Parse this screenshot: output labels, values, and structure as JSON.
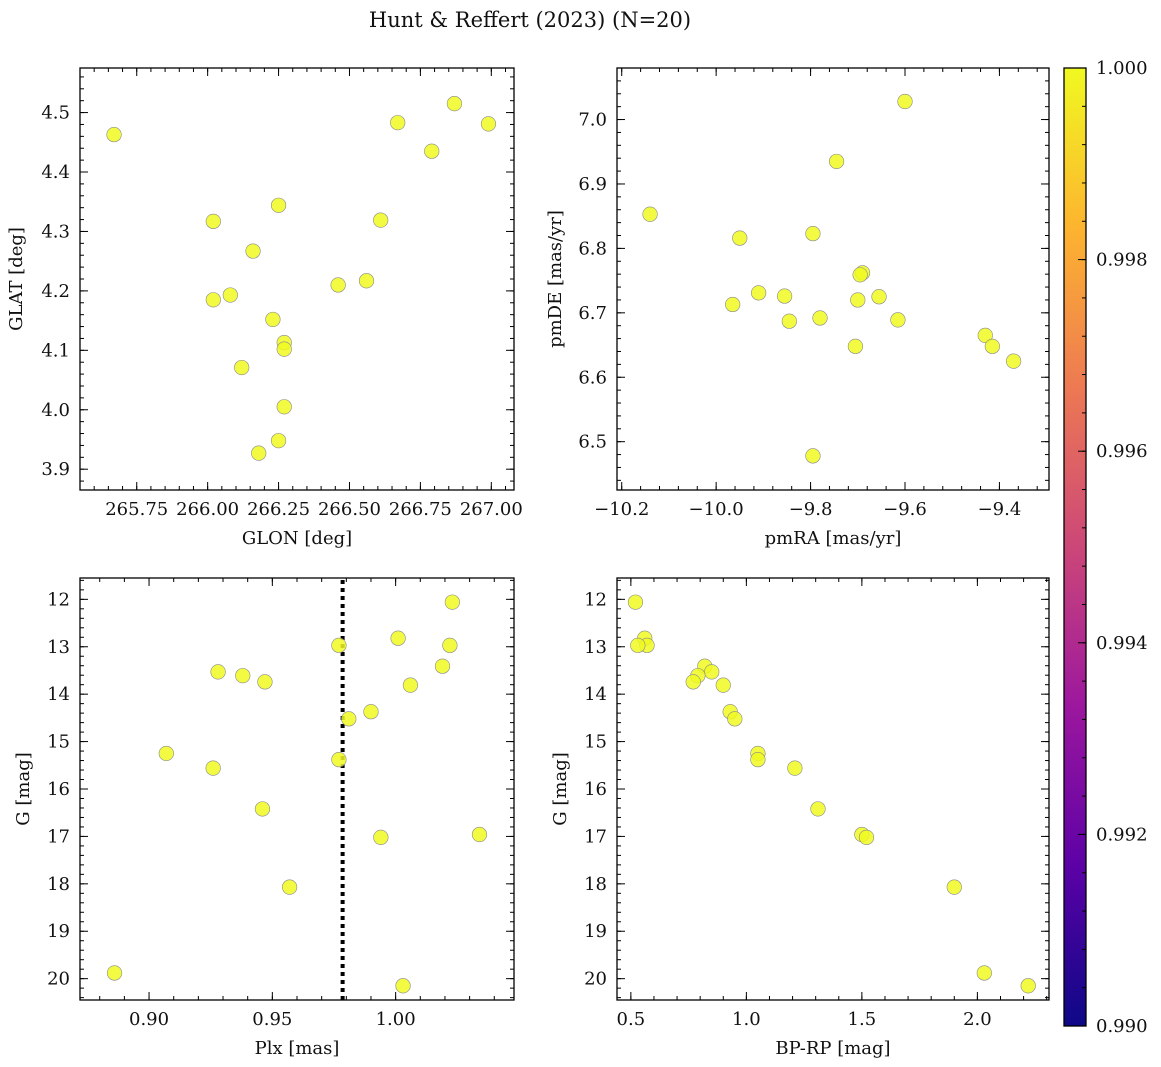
{
  "chart_data": {
    "type": "scatter",
    "title": "Hunt & Reffert (2023) (N=20)",
    "point_color": "#f0f921",
    "colorbar": {
      "range": [
        0.99,
        1.0
      ],
      "ticks": [
        0.99,
        0.992,
        0.994,
        0.996,
        0.998,
        1.0
      ],
      "tick_labels": [
        "0.990",
        "0.992",
        "0.994",
        "0.996",
        "0.998",
        "1.000"
      ],
      "colormap": "plasma",
      "stops": [
        "#0d0887",
        "#5c01a6",
        "#9c179e",
        "#cc4778",
        "#ed7953",
        "#fdb42f",
        "#f0f921"
      ]
    },
    "panels": [
      {
        "id": "glon-glat",
        "xlabel": "GLON [deg]",
        "ylabel": "GLAT [deg]",
        "xlim": [
          265.55,
          267.08
        ],
        "ylim": [
          3.865,
          4.575
        ],
        "invert_y": false,
        "xticks": [
          265.75,
          266.0,
          266.25,
          266.5,
          266.75,
          267.0
        ],
        "xtick_labels": [
          "265.75",
          "266.00",
          "266.25",
          "266.50",
          "266.75",
          "267.00"
        ],
        "yticks": [
          3.9,
          4.0,
          4.1,
          4.2,
          4.3,
          4.4,
          4.5
        ],
        "ytick_labels": [
          "3.9",
          "4.0",
          "4.1",
          "4.2",
          "4.3",
          "4.4",
          "4.5"
        ],
        "x_minor_step": 0.05,
        "y_minor_step": 0.02,
        "x": [
          265.67,
          266.67,
          266.99,
          266.87,
          266.79,
          266.25,
          266.02,
          266.61,
          266.16,
          266.46,
          266.56,
          266.08,
          266.02,
          266.23,
          266.27,
          266.27,
          266.12,
          266.27,
          266.25,
          266.18
        ],
        "y": [
          4.463,
          4.483,
          4.481,
          4.515,
          4.435,
          4.344,
          4.317,
          4.319,
          4.267,
          4.21,
          4.217,
          4.193,
          4.185,
          4.152,
          4.113,
          4.102,
          4.071,
          4.005,
          3.948,
          3.927
        ]
      },
      {
        "id": "pm",
        "xlabel": "pmRA [mas/yr]",
        "ylabel": "pmDE [mas/yr]",
        "xlim": [
          -10.21,
          -9.295
        ],
        "ylim": [
          6.425,
          7.08
        ],
        "invert_y": false,
        "xticks": [
          -10.2,
          -10.0,
          -9.8,
          -9.6,
          -9.4
        ],
        "xtick_labels": [
          "−10.2",
          "−10.0",
          "−9.8",
          "−9.6",
          "−9.4"
        ],
        "yticks": [
          6.5,
          6.6,
          6.7,
          6.8,
          6.9,
          7.0
        ],
        "ytick_labels": [
          "6.5",
          "6.6",
          "6.7",
          "6.8",
          "6.9",
          "7.0"
        ],
        "x_minor_step": 0.04,
        "y_minor_step": 0.02,
        "x": [
          -9.6,
          -10.14,
          -9.745,
          -9.95,
          -9.795,
          -9.91,
          -9.965,
          -9.855,
          -9.845,
          -9.78,
          -9.7,
          -9.69,
          -9.695,
          -9.655,
          -9.615,
          -9.705,
          -9.43,
          -9.415,
          -9.37,
          -9.795
        ],
        "y": [
          7.028,
          6.853,
          6.935,
          6.816,
          6.823,
          6.731,
          6.713,
          6.726,
          6.687,
          6.692,
          6.72,
          6.762,
          6.759,
          6.725,
          6.689,
          6.648,
          6.665,
          6.648,
          6.625,
          6.478
        ]
      },
      {
        "id": "plx-g",
        "xlabel": "Plx [mas]",
        "ylabel": "G [mag]",
        "xlim": [
          0.872,
          1.048
        ],
        "ylim": [
          20.45,
          11.55
        ],
        "invert_y": true,
        "xticks": [
          0.9,
          0.95,
          1.0
        ],
        "xtick_labels": [
          "0.90",
          "0.95",
          "1.00"
        ],
        "yticks": [
          12,
          13,
          14,
          15,
          16,
          17,
          18,
          19,
          20
        ],
        "ytick_labels": [
          "12",
          "13",
          "14",
          "15",
          "16",
          "17",
          "18",
          "19",
          "20"
        ],
        "x_minor_step": 0.01,
        "y_minor_step": 0.2,
        "vline": 0.9785,
        "x": [
          1.023,
          1.001,
          1.022,
          0.977,
          1.019,
          0.928,
          0.938,
          0.947,
          1.006,
          0.99,
          0.981,
          0.907,
          0.977,
          0.926,
          0.946,
          0.994,
          1.034,
          0.957,
          0.886,
          1.003
        ],
        "y": [
          12.06,
          12.82,
          12.97,
          12.97,
          13.41,
          13.53,
          13.61,
          13.74,
          13.81,
          14.37,
          14.52,
          15.25,
          15.38,
          15.56,
          16.42,
          17.02,
          16.96,
          18.07,
          19.88,
          20.15
        ]
      },
      {
        "id": "cmd",
        "xlabel": "BP-RP [mag]",
        "ylabel": "G [mag]",
        "xlim": [
          0.44,
          2.31
        ],
        "ylim": [
          20.45,
          11.55
        ],
        "invert_y": true,
        "xticks": [
          0.5,
          1.0,
          1.5,
          2.0
        ],
        "xtick_labels": [
          "0.5",
          "1.0",
          "1.5",
          "2.0"
        ],
        "yticks": [
          12,
          13,
          14,
          15,
          16,
          17,
          18,
          19,
          20
        ],
        "ytick_labels": [
          "12",
          "13",
          "14",
          "15",
          "16",
          "17",
          "18",
          "19",
          "20"
        ],
        "x_minor_step": 0.1,
        "y_minor_step": 0.2,
        "x": [
          0.52,
          0.56,
          0.57,
          0.53,
          0.82,
          0.85,
          0.79,
          0.77,
          0.9,
          0.93,
          0.95,
          1.05,
          1.05,
          1.21,
          1.31,
          1.5,
          1.52,
          1.9,
          2.03,
          2.22
        ],
        "y": [
          12.06,
          12.82,
          12.97,
          12.97,
          13.41,
          13.53,
          13.61,
          13.74,
          13.81,
          14.37,
          14.52,
          15.25,
          15.38,
          15.56,
          16.42,
          16.96,
          17.02,
          18.07,
          19.88,
          20.15
        ]
      }
    ]
  }
}
